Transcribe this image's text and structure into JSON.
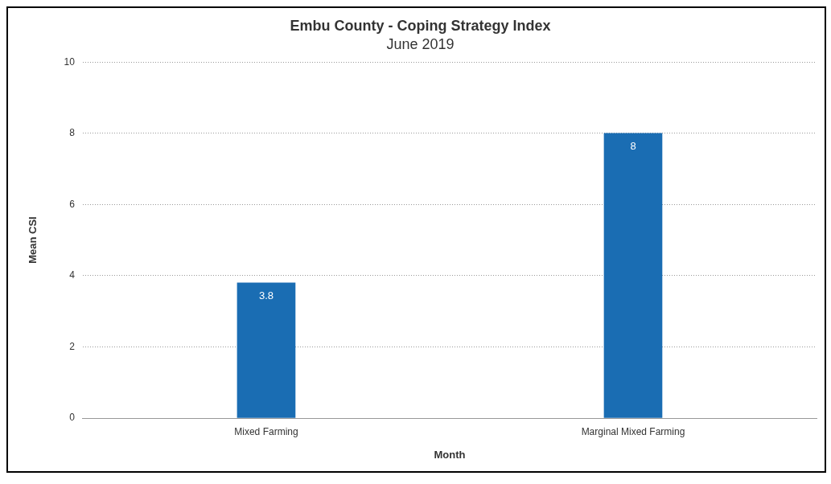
{
  "chart_data": {
    "type": "bar",
    "title": "Embu County - Coping Strategy Index",
    "subtitle": "June 2019",
    "xlabel": "Month",
    "ylabel": "Mean CSI",
    "categories": [
      "Mixed Farming",
      "Marginal Mixed Farming"
    ],
    "values": [
      3.8,
      8
    ],
    "color": "#1a6db3",
    "ylim": [
      0,
      10
    ],
    "yticks": [
      0,
      2,
      4,
      6,
      8,
      10
    ],
    "grid": "y",
    "legend": false,
    "data_labels": true
  }
}
